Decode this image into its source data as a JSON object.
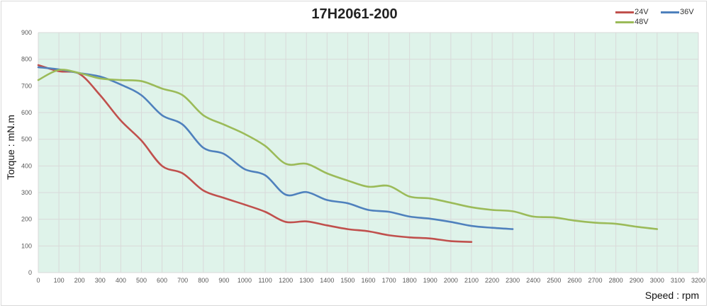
{
  "chart_data": {
    "type": "line",
    "title": "17H2061-200",
    "xlabel": "Speed : rpm",
    "ylabel": "Torque : mN.m",
    "xlim": [
      0,
      3200
    ],
    "ylim": [
      0,
      900
    ],
    "x_ticks": [
      0,
      100,
      200,
      300,
      400,
      500,
      600,
      700,
      800,
      900,
      1000,
      1100,
      1200,
      1300,
      1400,
      1500,
      1600,
      1700,
      1800,
      1900,
      2000,
      2100,
      2200,
      2300,
      2400,
      2500,
      2600,
      2700,
      2800,
      2900,
      3000,
      3100,
      3200
    ],
    "y_ticks": [
      0,
      100,
      200,
      300,
      400,
      500,
      600,
      700,
      800,
      900
    ],
    "grid": true,
    "legend_position": "top-right",
    "series": [
      {
        "name": "24V",
        "color": "#c0504d",
        "x": [
          0,
          100,
          200,
          300,
          400,
          500,
          600,
          700,
          800,
          900,
          1000,
          1100,
          1200,
          1300,
          1400,
          1500,
          1600,
          1700,
          1800,
          1900,
          2000,
          2100
        ],
        "values": [
          778,
          755,
          745,
          665,
          570,
          495,
          400,
          372,
          308,
          280,
          255,
          228,
          190,
          192,
          177,
          163,
          155,
          140,
          132,
          128,
          118,
          115
        ]
      },
      {
        "name": "36V",
        "color": "#4f81bd",
        "x": [
          0,
          100,
          200,
          300,
          400,
          500,
          600,
          700,
          800,
          900,
          1000,
          1100,
          1200,
          1300,
          1400,
          1500,
          1600,
          1700,
          1800,
          1900,
          2000,
          2100,
          2200,
          2300
        ],
        "values": [
          770,
          762,
          748,
          735,
          705,
          665,
          590,
          555,
          468,
          445,
          388,
          365,
          292,
          302,
          272,
          260,
          235,
          228,
          210,
          202,
          190,
          175,
          168,
          163
        ]
      },
      {
        "name": "48V",
        "color": "#9bbb59",
        "x": [
          0,
          100,
          200,
          300,
          400,
          500,
          600,
          700,
          800,
          900,
          1000,
          1100,
          1200,
          1300,
          1400,
          1500,
          1600,
          1700,
          1800,
          1900,
          2000,
          2100,
          2200,
          2300,
          2400,
          2500,
          2600,
          2700,
          2800,
          2900,
          3000
        ],
        "values": [
          722,
          760,
          748,
          728,
          722,
          718,
          690,
          665,
          590,
          555,
          520,
          475,
          408,
          408,
          372,
          345,
          322,
          325,
          285,
          278,
          262,
          245,
          235,
          230,
          210,
          207,
          195,
          187,
          183,
          172,
          163
        ]
      }
    ]
  },
  "colors": {
    "plot_bg": "#dff3ea",
    "grid": "#d9d9d9"
  }
}
